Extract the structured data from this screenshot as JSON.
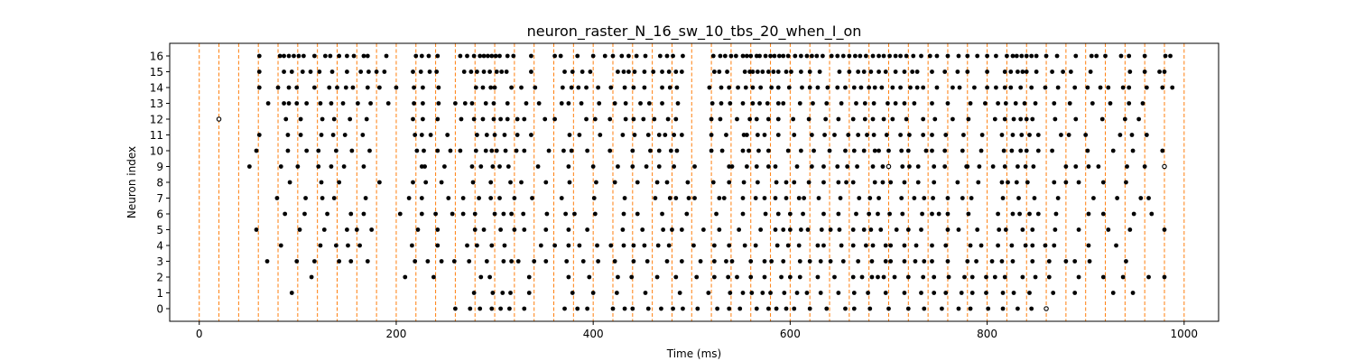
{
  "chart_data": {
    "type": "scatter",
    "title": "neuron_raster_N_16_sw_10_tbs_20_when_I_on",
    "xlabel": "Time (ms)",
    "ylabel": "Neuron index",
    "xlim": [
      -30,
      1035
    ],
    "ylim": [
      -0.8,
      16.8
    ],
    "xticks": [
      0,
      200,
      400,
      600,
      800,
      1000
    ],
    "yticks": [
      0,
      1,
      2,
      3,
      4,
      5,
      6,
      7,
      8,
      9,
      10,
      11,
      12,
      13,
      14,
      15,
      16
    ],
    "grid": false,
    "marker_color": "#000000",
    "vline_color": "#ff7f0e",
    "vlines": [
      0,
      20,
      40,
      60,
      80,
      100,
      120,
      140,
      160,
      180,
      200,
      220,
      240,
      260,
      280,
      300,
      320,
      340,
      360,
      380,
      400,
      420,
      440,
      460,
      480,
      500,
      520,
      540,
      560,
      580,
      600,
      620,
      640,
      660,
      680,
      700,
      720,
      740,
      760,
      780,
      800,
      820,
      840,
      860,
      880,
      900,
      920,
      940,
      960,
      980,
      1000
    ],
    "hollow_points": [
      [
        20,
        12
      ],
      [
        700,
        9
      ],
      [
        980,
        9
      ],
      [
        860,
        0
      ]
    ],
    "spikes": {
      "16": [
        61,
        82,
        86,
        91,
        96,
        101,
        106,
        117,
        128,
        133,
        142,
        150,
        157,
        167,
        171,
        190,
        220,
        226,
        233,
        242,
        265,
        272,
        279,
        285,
        289,
        293,
        297,
        301,
        305,
        313,
        319,
        337,
        361,
        367,
        384,
        400,
        412,
        420,
        429,
        436,
        444,
        453,
        468,
        475,
        481,
        491,
        522,
        529,
        534,
        540,
        545,
        552,
        556,
        560,
        566,
        569,
        575,
        580,
        584,
        589,
        593,
        598,
        605,
        611,
        617,
        622,
        627,
        633,
        642,
        648,
        654,
        660,
        666,
        671,
        677,
        684,
        690,
        695,
        701,
        707,
        712,
        718,
        725,
        733,
        742,
        749,
        760,
        771,
        780,
        790,
        800,
        809,
        820,
        826,
        830,
        835,
        840,
        845,
        850,
        860,
        871,
        890,
        906,
        911,
        920,
        936,
        944,
        960,
        981,
        986
      ],
      "15": [
        61,
        86,
        94,
        105,
        113,
        122,
        135,
        150,
        164,
        172,
        180,
        188,
        217,
        225,
        234,
        241,
        269,
        276,
        282,
        289,
        295,
        302,
        307,
        312,
        337,
        371,
        379,
        389,
        397,
        425,
        431,
        436,
        442,
        452,
        461,
        470,
        477,
        484,
        490,
        523,
        528,
        536,
        554,
        559,
        562,
        567,
        572,
        578,
        583,
        588,
        596,
        601,
        611,
        620,
        630,
        650,
        660,
        669,
        675,
        682,
        690,
        697,
        707,
        716,
        724,
        729,
        744,
        757,
        770,
        780,
        800,
        818,
        824,
        831,
        836,
        840,
        850,
        866,
        877,
        885,
        905,
        945,
        960,
        975,
        980
      ],
      "14": [
        61,
        80,
        91,
        99,
        117,
        132,
        140,
        149,
        156,
        171,
        183,
        200,
        218,
        227,
        243,
        281,
        288,
        296,
        300,
        317,
        327,
        341,
        369,
        378,
        385,
        393,
        405,
        418,
        432,
        441,
        452,
        470,
        478,
        485,
        518,
        530,
        538,
        547,
        555,
        562,
        570,
        581,
        588,
        599,
        612,
        620,
        628,
        638,
        648,
        656,
        665,
        672,
        680,
        686,
        693,
        704,
        712,
        722,
        729,
        735,
        749,
        765,
        772,
        787,
        800,
        809,
        818,
        824,
        834,
        845,
        859,
        872,
        889,
        902,
        915,
        923,
        938,
        944,
        962,
        978,
        988
      ],
      "13": [
        70,
        86,
        91,
        99,
        109,
        123,
        134,
        146,
        161,
        174,
        192,
        218,
        227,
        243,
        260,
        270,
        277,
        291,
        299,
        313,
        332,
        345,
        368,
        375,
        388,
        406,
        422,
        433,
        448,
        457,
        470,
        486,
        521,
        530,
        539,
        552,
        562,
        569,
        577,
        588,
        593,
        610,
        623,
        637,
        652,
        667,
        676,
        685,
        699,
        707,
        716,
        726,
        744,
        760,
        783,
        798,
        811,
        819,
        829,
        838,
        849,
        868,
        884,
        907,
        925,
        944,
        958
      ],
      "12": [
        20,
        88,
        103,
        125,
        137,
        153,
        170,
        217,
        227,
        242,
        266,
        279,
        288,
        299,
        306,
        313,
        323,
        330,
        351,
        361,
        393,
        402,
        417,
        433,
        441,
        451,
        462,
        476,
        484,
        520,
        529,
        546,
        559,
        566,
        578,
        588,
        603,
        619,
        636,
        649,
        664,
        676,
        684,
        695,
        704,
        718,
        735,
        747,
        765,
        781,
        808,
        818,
        827,
        834,
        840,
        846,
        869,
        890,
        917,
        940,
        954
      ],
      "11": [
        61,
        90,
        103,
        124,
        136,
        148,
        166,
        219,
        226,
        235,
        252,
        282,
        292,
        300,
        310,
        323,
        337,
        376,
        386,
        407,
        430,
        442,
        456,
        467,
        473,
        482,
        490,
        520,
        535,
        553,
        556,
        567,
        574,
        588,
        604,
        622,
        635,
        645,
        659,
        669,
        678,
        685,
        698,
        712,
        721,
        735,
        744,
        758,
        776,
        795,
        815,
        826,
        835,
        843,
        852,
        875,
        883,
        900,
        935,
        947,
        962
      ],
      "10": [
        58,
        90,
        109,
        121,
        139,
        155,
        173,
        221,
        228,
        242,
        255,
        265,
        281,
        291,
        297,
        302,
        311,
        322,
        330,
        355,
        370,
        378,
        394,
        417,
        440,
        458,
        467,
        479,
        485,
        520,
        531,
        552,
        558,
        568,
        578,
        598,
        611,
        624,
        640,
        656,
        665,
        675,
        686,
        690,
        700,
        713,
        720,
        738,
        744,
        757,
        775,
        794,
        817,
        825,
        834,
        840,
        852,
        866,
        902,
        928,
        948,
        978
      ],
      "9": [
        51,
        83,
        100,
        121,
        134,
        147,
        167,
        226,
        229,
        249,
        277,
        286,
        298,
        305,
        314,
        344,
        375,
        400,
        425,
        440,
        454,
        467,
        482,
        503,
        538,
        541,
        556,
        566,
        578,
        585,
        607,
        622,
        634,
        648,
        658,
        668,
        684,
        694,
        700,
        714,
        721,
        730,
        746,
        757,
        779,
        780,
        792,
        806,
        818,
        831,
        839,
        847,
        880,
        890,
        903,
        913,
        942,
        960,
        980
      ],
      "8": [
        92,
        124,
        142,
        183,
        217,
        230,
        246,
        278,
        296,
        316,
        327,
        352,
        376,
        403,
        422,
        445,
        465,
        475,
        496,
        522,
        538,
        553,
        567,
        586,
        596,
        604,
        619,
        634,
        649,
        657,
        664,
        686,
        694,
        702,
        716,
        730,
        746,
        770,
        791,
        815,
        821,
        830,
        841,
        868,
        880,
        893,
        918,
        941
      ],
      "7": [
        79,
        108,
        125,
        137,
        169,
        213,
        226,
        253,
        268,
        284,
        296,
        305,
        320,
        338,
        368,
        401,
        432,
        463,
        478,
        484,
        497,
        503,
        528,
        533,
        552,
        565,
        574,
        585,
        596,
        609,
        614,
        629,
        651,
        670,
        681,
        690,
        713,
        726,
        736,
        745,
        760,
        775,
        784,
        816,
        832,
        848,
        872,
        908,
        932,
        956,
        964
      ],
      "6": [
        87,
        107,
        130,
        154,
        167,
        204,
        226,
        240,
        257,
        268,
        280,
        300,
        309,
        317,
        329,
        353,
        372,
        381,
        402,
        431,
        445,
        470,
        495,
        525,
        552,
        575,
        588,
        600,
        613,
        634,
        649,
        667,
        680,
        689,
        701,
        714,
        734,
        744,
        751,
        760,
        781,
        811,
        826,
        833,
        843,
        852,
        870,
        903,
        918,
        949,
        967
      ],
      "5": [
        58,
        102,
        127,
        150,
        160,
        175,
        222,
        242,
        280,
        289,
        306,
        320,
        330,
        352,
        375,
        394,
        430,
        450,
        471,
        480,
        490,
        512,
        528,
        548,
        570,
        585,
        593,
        600,
        611,
        618,
        632,
        641,
        650,
        664,
        675,
        682,
        692,
        708,
        720,
        733,
        760,
        771,
        790,
        812,
        819,
        836,
        846,
        869,
        893,
        923,
        945,
        980
      ],
      "4": [
        83,
        123,
        139,
        151,
        163,
        216,
        242,
        272,
        282,
        297,
        310,
        347,
        361,
        375,
        386,
        404,
        418,
        431,
        441,
        452,
        466,
        477,
        502,
        523,
        538,
        554,
        565,
        587,
        598,
        609,
        628,
        634,
        652,
        664,
        677,
        684,
        697,
        702,
        716,
        728,
        744,
        758,
        783,
        794,
        811,
        825,
        839,
        846,
        859,
        868,
        903,
        931
      ],
      "3": [
        69,
        99,
        117,
        142,
        154,
        171,
        219,
        232,
        246,
        259,
        274,
        292,
        309,
        317,
        324,
        340,
        352,
        373,
        390,
        405,
        422,
        441,
        455,
        475,
        490,
        509,
        523,
        535,
        541,
        560,
        574,
        581,
        593,
        610,
        620,
        631,
        641,
        654,
        669,
        683,
        697,
        702,
        716,
        727,
        736,
        744,
        760,
        780,
        789,
        805,
        815,
        826,
        846,
        863,
        880,
        889,
        904,
        941
      ],
      "2": [
        114,
        209,
        238,
        286,
        295,
        335,
        375,
        396,
        425,
        439,
        465,
        484,
        505,
        523,
        537,
        546,
        560,
        574,
        591,
        600,
        610,
        628,
        645,
        664,
        673,
        683,
        689,
        695,
        706,
        720,
        735,
        746,
        761,
        777,
        785,
        799,
        808,
        818,
        836,
        849,
        863,
        893,
        918,
        938,
        964,
        980
      ],
      "1": [
        94,
        279,
        298,
        308,
        316,
        335,
        379,
        400,
        424,
        453,
        488,
        517,
        539,
        552,
        561,
        572,
        580,
        594,
        607,
        617,
        631,
        649,
        665,
        679,
        697,
        716,
        733,
        746,
        758,
        774,
        785,
        799,
        816,
        827,
        843,
        867,
        889,
        928,
        948
      ],
      "0": [
        260,
        275,
        285,
        297,
        306,
        315,
        330,
        371,
        384,
        394,
        420,
        432,
        440,
        456,
        469,
        481,
        491,
        506,
        526,
        538,
        549,
        566,
        578,
        586,
        596,
        604,
        620,
        637,
        656,
        665,
        681,
        700,
        720,
        736,
        754,
        771,
        783,
        801,
        816,
        831,
        845,
        860
      ]
    }
  }
}
